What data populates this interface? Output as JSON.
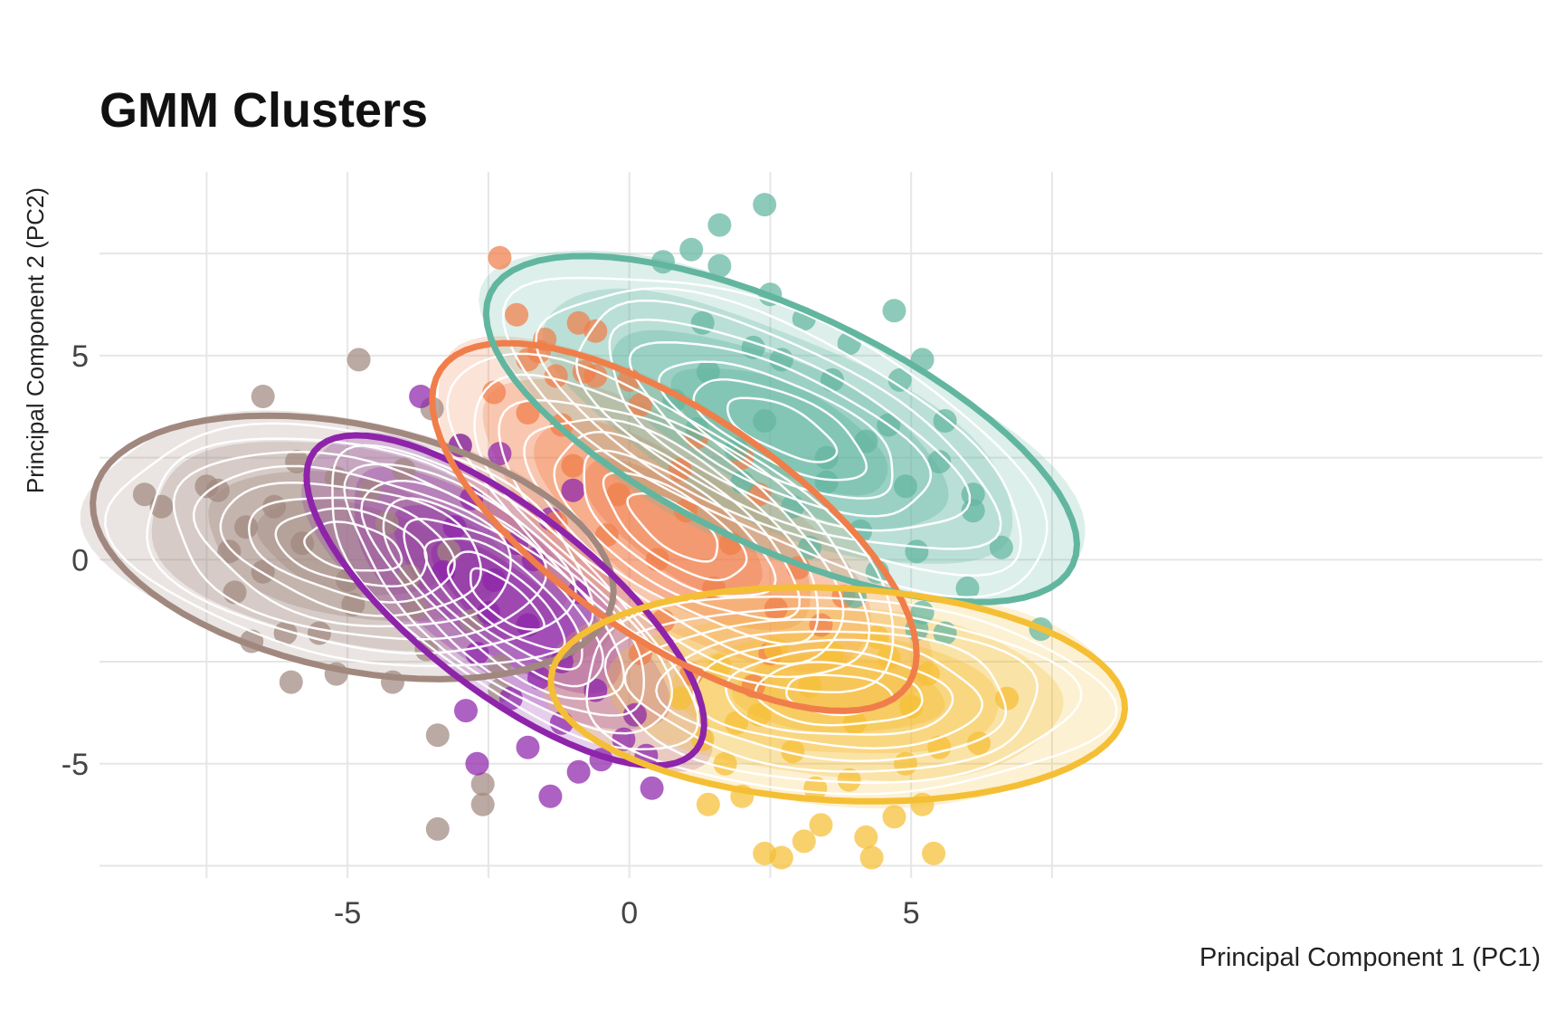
{
  "chart_data": {
    "type": "scatter",
    "title": "GMM Clusters",
    "xlabel": "Principal Component 1 (PC1)",
    "ylabel": "Principal Component 2 (PC2)",
    "xlim": [
      -9.4,
      16.2
    ],
    "ylim": [
      -7.8,
      9.5
    ],
    "x_ticks": [
      -5,
      0,
      5
    ],
    "y_ticks": [
      -5,
      0,
      5
    ],
    "grid": true,
    "legend": "none",
    "series": [
      {
        "color": "#a1887f",
        "center": [
          -4.9,
          0.3
        ],
        "ellipse": {
          "rx": 4.7,
          "ry": 3.0,
          "angle_deg": -12
        },
        "points": [
          [
            -8.6,
            1.6
          ],
          [
            -8.3,
            1.3
          ],
          [
            -7.5,
            1.8
          ],
          [
            -7.3,
            1.7
          ],
          [
            -6.5,
            4.0
          ],
          [
            -4.8,
            4.9
          ],
          [
            -3.5,
            3.7
          ],
          [
            -3.0,
            2.8
          ],
          [
            -5.2,
            2.0
          ],
          [
            -6.8,
            0.8
          ],
          [
            -7.0,
            -0.8
          ],
          [
            -6.7,
            -2.0
          ],
          [
            -6.1,
            -1.8
          ],
          [
            -6.0,
            -3.0
          ],
          [
            -4.2,
            -3.0
          ],
          [
            -3.4,
            -4.3
          ],
          [
            -2.3,
            -2.6
          ],
          [
            -2.3,
            -3.2
          ],
          [
            -2.6,
            -6.0
          ],
          [
            -2.6,
            -5.5
          ],
          [
            -3.4,
            -6.6
          ],
          [
            -5.8,
            0.4
          ],
          [
            -5.0,
            -0.5
          ],
          [
            -4.3,
            0.9
          ],
          [
            -3.8,
            -1.2
          ],
          [
            -5.5,
            -1.8
          ],
          [
            -6.3,
            1.3
          ],
          [
            -4.0,
            2.2
          ],
          [
            -3.2,
            0.2
          ],
          [
            -2.8,
            -1.5
          ],
          [
            -6.5,
            -0.3
          ],
          [
            -5.2,
            -2.8
          ],
          [
            -4.6,
            1.7
          ],
          [
            -3.6,
            -2.2
          ],
          [
            -5.9,
            2.4
          ],
          [
            -4.9,
            -1.1
          ],
          [
            -7.1,
            0.2
          ],
          [
            -3.9,
            -0.4
          ]
        ]
      },
      {
        "color": "#8e24aa",
        "center": [
          -2.2,
          -1.0
        ],
        "ellipse": {
          "rx": 4.3,
          "ry": 2.2,
          "angle_deg": -38
        },
        "points": [
          [
            -3.7,
            4.0
          ],
          [
            -2.4,
            -0.5
          ],
          [
            -1.8,
            -1.6
          ],
          [
            -1.2,
            -2.5
          ],
          [
            -0.6,
            -3.2
          ],
          [
            -0.1,
            -4.4
          ],
          [
            0.3,
            -4.8
          ],
          [
            0.4,
            -5.6
          ],
          [
            -1.4,
            -5.8
          ],
          [
            -0.9,
            -5.2
          ],
          [
            -2.7,
            -5.0
          ],
          [
            -1.8,
            -4.6
          ],
          [
            -3.0,
            2.8
          ],
          [
            -2.3,
            2.6
          ],
          [
            -2.8,
            1.5
          ],
          [
            -1.4,
            1.0
          ],
          [
            -3.3,
            -0.3
          ],
          [
            -2.7,
            -2.3
          ],
          [
            -0.9,
            -0.8
          ],
          [
            -2.1,
            -3.4
          ],
          [
            -1.2,
            -4.0
          ],
          [
            -3.1,
            0.8
          ],
          [
            -2.5,
            -1.3
          ],
          [
            -1.6,
            -2.9
          ],
          [
            0.1,
            -3.8
          ],
          [
            -1.0,
            1.7
          ],
          [
            -2.0,
            0.4
          ],
          [
            -2.9,
            -3.7
          ],
          [
            -0.5,
            -4.9
          ],
          [
            -1.7,
            0.0
          ]
        ]
      },
      {
        "color": "#f07e4a",
        "center": [
          0.8,
          0.8
        ],
        "ellipse": {
          "rx": 5.0,
          "ry": 2.8,
          "angle_deg": -34
        },
        "points": [
          [
            -2.3,
            7.4
          ],
          [
            -2.0,
            6.0
          ],
          [
            -1.8,
            4.9
          ],
          [
            -1.6,
            5.1
          ],
          [
            -1.3,
            4.5
          ],
          [
            -1.5,
            5.4
          ],
          [
            -0.9,
            5.8
          ],
          [
            -0.6,
            5.6
          ],
          [
            -2.4,
            4.1
          ],
          [
            -1.8,
            3.6
          ],
          [
            -1.2,
            3.3
          ],
          [
            -0.8,
            4.6
          ],
          [
            -0.6,
            4.5
          ],
          [
            0.0,
            4.4
          ],
          [
            0.2,
            3.8
          ],
          [
            1.2,
            3.0
          ],
          [
            2.0,
            2.5
          ],
          [
            2.3,
            1.6
          ],
          [
            1.0,
            1.2
          ],
          [
            0.5,
            0.0
          ],
          [
            1.5,
            -0.7
          ],
          [
            2.6,
            -1.2
          ],
          [
            3.4,
            -1.6
          ],
          [
            0.2,
            -2.3
          ],
          [
            1.1,
            -2.8
          ],
          [
            2.2,
            -3.1
          ],
          [
            -1.0,
            2.3
          ],
          [
            -0.4,
            0.6
          ],
          [
            0.9,
            2.2
          ],
          [
            3.0,
            -0.2
          ],
          [
            1.8,
            0.4
          ],
          [
            -0.2,
            1.6
          ],
          [
            2.5,
            -2.3
          ],
          [
            0.6,
            -1.5
          ],
          [
            -1.3,
            0.9
          ],
          [
            3.8,
            -0.9
          ]
        ]
      },
      {
        "color": "#62b6a0",
        "center": [
          2.7,
          3.2
        ],
        "ellipse": {
          "rx": 5.7,
          "ry": 2.9,
          "angle_deg": -25
        },
        "points": [
          [
            2.4,
            8.7
          ],
          [
            1.6,
            8.2
          ],
          [
            1.1,
            7.6
          ],
          [
            0.6,
            7.3
          ],
          [
            1.6,
            7.2
          ],
          [
            2.5,
            6.5
          ],
          [
            4.7,
            6.1
          ],
          [
            3.1,
            5.9
          ],
          [
            1.3,
            5.8
          ],
          [
            5.2,
            4.9
          ],
          [
            6.1,
            1.6
          ],
          [
            6.1,
            1.2
          ],
          [
            6.6,
            0.3
          ],
          [
            6.0,
            -0.7
          ],
          [
            5.2,
            -1.3
          ],
          [
            5.1,
            -1.7
          ],
          [
            5.6,
            -1.8
          ],
          [
            7.3,
            -1.7
          ],
          [
            4.2,
            2.9
          ],
          [
            3.5,
            1.9
          ],
          [
            2.4,
            3.4
          ],
          [
            1.9,
            2.7
          ],
          [
            3.6,
            4.4
          ],
          [
            4.6,
            3.3
          ],
          [
            2.9,
            1.3
          ],
          [
            4.1,
            0.7
          ],
          [
            5.5,
            2.4
          ],
          [
            1.4,
            4.6
          ],
          [
            0.8,
            3.9
          ],
          [
            2.2,
            5.2
          ],
          [
            3.9,
            5.3
          ],
          [
            4.9,
            1.8
          ],
          [
            3.2,
            0.3
          ],
          [
            5.1,
            0.2
          ],
          [
            2.0,
            1.9
          ],
          [
            4.4,
            -0.3
          ],
          [
            1.2,
            3.2
          ],
          [
            2.7,
            4.9
          ],
          [
            3.5,
            2.5
          ],
          [
            4.8,
            4.4
          ],
          [
            5.6,
            3.4
          ],
          [
            4.0,
            -0.9
          ]
        ]
      },
      {
        "color": "#f5bf35",
        "center": [
          3.7,
          -3.3
        ],
        "ellipse": {
          "rx": 5.1,
          "ry": 2.6,
          "angle_deg": -3
        },
        "points": [
          [
            0.9,
            -3.4
          ],
          [
            1.3,
            -4.4
          ],
          [
            1.7,
            -5.0
          ],
          [
            1.4,
            -6.0
          ],
          [
            2.0,
            -5.8
          ],
          [
            2.4,
            -7.2
          ],
          [
            2.7,
            -7.3
          ],
          [
            3.1,
            -6.9
          ],
          [
            3.4,
            -6.5
          ],
          [
            4.2,
            -6.8
          ],
          [
            4.3,
            -7.3
          ],
          [
            4.7,
            -6.3
          ],
          [
            5.2,
            -6.0
          ],
          [
            5.4,
            -7.2
          ],
          [
            5.5,
            -4.6
          ],
          [
            6.2,
            -4.5
          ],
          [
            6.7,
            -3.4
          ],
          [
            3.6,
            -2.3
          ],
          [
            2.3,
            -3.8
          ],
          [
            3.2,
            -3.1
          ],
          [
            4.6,
            -2.4
          ],
          [
            2.9,
            -4.7
          ],
          [
            4.0,
            -4.0
          ],
          [
            5.0,
            -3.6
          ],
          [
            1.6,
            -2.6
          ],
          [
            2.6,
            -2.2
          ],
          [
            3.9,
            -5.4
          ],
          [
            4.9,
            -5.0
          ],
          [
            5.3,
            -2.8
          ],
          [
            1.9,
            -4.0
          ],
          [
            3.3,
            -5.6
          ],
          [
            4.4,
            -1.9
          ]
        ]
      }
    ]
  }
}
